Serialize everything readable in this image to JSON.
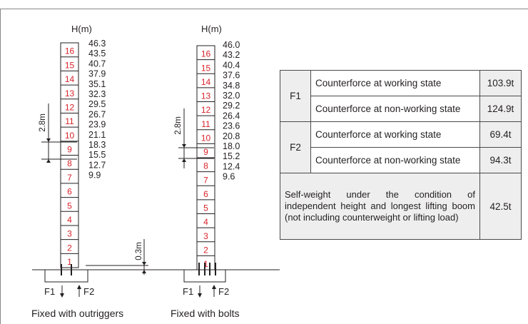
{
  "towers": [
    {
      "id": "outriggers",
      "axis_label": "H(m)",
      "segments": [
        "1",
        "2",
        "3",
        "4",
        "5",
        "6",
        "7",
        "8",
        "9",
        "10",
        "11",
        "12",
        "13",
        "14",
        "15",
        "16"
      ],
      "heights": [
        "46.3",
        "43.5",
        "40.7",
        "37.9",
        "35.1",
        "32.3",
        "29.5",
        "26.7",
        "23.9",
        "21.1",
        "18.3",
        "15.5",
        "12.7",
        "9.9"
      ],
      "dimension": "2.8m",
      "base_dimension": "0.3m",
      "force_left": "F1",
      "force_right": "F2",
      "caption": "Fixed with outriggers"
    },
    {
      "id": "bolts",
      "axis_label": "H(m)",
      "segments": [
        "1",
        "2",
        "3",
        "4",
        "5",
        "6",
        "7",
        "8",
        "9",
        "10",
        "11",
        "12",
        "13",
        "14",
        "15",
        "16"
      ],
      "heights": [
        "46.0",
        "43.2",
        "40.4",
        "37.6",
        "34.8",
        "32.0",
        "29.2",
        "26.4",
        "23.6",
        "20.8",
        "18.0",
        "15.2",
        "12.4",
        "9.6"
      ],
      "dimension": "2.8m",
      "force_left": "F1",
      "force_right": "F2",
      "caption": "Fixed with bolts"
    }
  ],
  "table": {
    "F1": {
      "label": "F1",
      "working_label": "Counterforce at working state",
      "working_value": "103.9t",
      "nonworking_label": "Counterforce at non-working state",
      "nonworking_value": "124.9t"
    },
    "F2": {
      "label": "F2",
      "working_label": "Counterforce at working state",
      "working_value": "69.4t",
      "nonworking_label": "Counterforce at non-working state",
      "nonworking_value": "94.3t"
    },
    "self_weight": {
      "label": "Self-weight under the condition of independent height and longest lifting boom (not including counterweight or lifting load)",
      "value": "42.5t"
    }
  }
}
